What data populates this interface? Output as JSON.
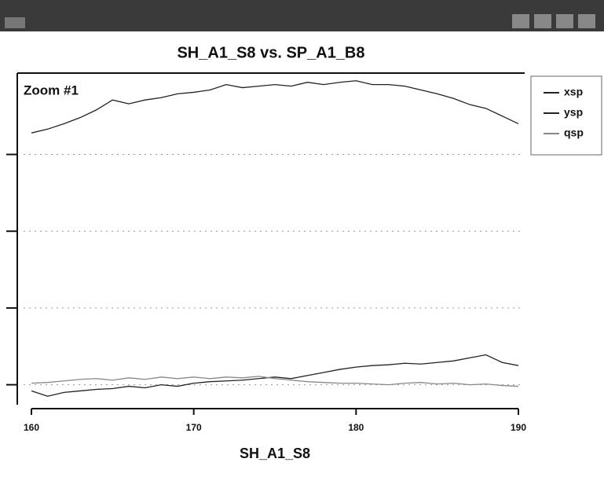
{
  "chart_data": {
    "type": "line",
    "title": "SH_A1_S8 vs. SP_A1_B8",
    "annotation": "Zoom #1",
    "x_label": "SH_A1_S8",
    "x": [
      160,
      161,
      162,
      163,
      164,
      165,
      166,
      167,
      168,
      169,
      170,
      171,
      172,
      173,
      174,
      175,
      176,
      177,
      178,
      179,
      180,
      181,
      182,
      183,
      184,
      185,
      186,
      187,
      188,
      189,
      190
    ],
    "series": [
      {
        "name": "xsp",
        "color": "#222222",
        "values": [
          3.28,
          3.33,
          3.4,
          3.48,
          3.58,
          3.71,
          3.66,
          3.71,
          3.74,
          3.79,
          3.81,
          3.84,
          3.91,
          3.87,
          3.89,
          3.91,
          3.89,
          3.94,
          3.91,
          3.94,
          3.96,
          3.91,
          3.91,
          3.89,
          3.84,
          3.79,
          3.73,
          3.65,
          3.6,
          3.5,
          3.4
        ]
      },
      {
        "name": "ysp",
        "color": "#222222",
        "values": [
          -0.08,
          -0.15,
          -0.1,
          -0.08,
          -0.06,
          -0.05,
          -0.02,
          -0.04,
          0,
          -0.02,
          0.02,
          0.04,
          0.05,
          0.06,
          0.08,
          0.1,
          0.08,
          0.12,
          0.16,
          0.2,
          0.23,
          0.25,
          0.26,
          0.28,
          0.27,
          0.29,
          0.31,
          0.35,
          0.39,
          0.29,
          0.25
        ]
      },
      {
        "name": "qsp",
        "color": "#888888",
        "values": [
          0.02,
          0.03,
          0.05,
          0.07,
          0.08,
          0.06,
          0.09,
          0.07,
          0.1,
          0.08,
          0.1,
          0.08,
          0.1,
          0.09,
          0.11,
          0.08,
          0.06,
          0.04,
          0.03,
          0.02,
          0.02,
          0.01,
          0,
          0.02,
          0.03,
          0.01,
          0.02,
          0,
          0.01,
          -0.01,
          -0.02
        ]
      }
    ],
    "xlim": [
      160,
      190
    ],
    "xticks": [
      160,
      170,
      180,
      190
    ],
    "ylim": [
      -0.26,
      4.06
    ],
    "yticks": [
      0,
      1,
      2,
      3
    ],
    "grid": true,
    "legend": "right"
  }
}
